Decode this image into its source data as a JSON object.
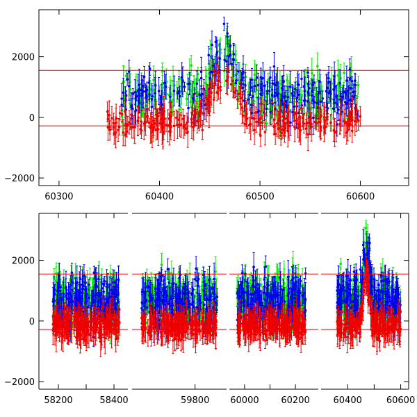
{
  "colors": {
    "green": "#00ee00",
    "blue": "#0000ee",
    "red": "#ee0000",
    "frame": "#000000"
  },
  "chart_data": [
    {
      "type": "scatter",
      "title": "",
      "xlabel": "",
      "ylabel": "",
      "xlim": [
        60280,
        60648
      ],
      "ylim": [
        -2250,
        3550
      ],
      "xticks": [
        60300,
        60400,
        60500,
        60600
      ],
      "xtick_labels": [
        "60300",
        "60400",
        "60500",
        "60600"
      ],
      "yticks": [
        -2000,
        0,
        2000
      ],
      "ytick_labels": [
        "−2000",
        "0",
        "2000"
      ],
      "hlines": [
        1550,
        -280
      ],
      "data_range": [
        60348,
        60600
      ],
      "peak_center": 60465,
      "series": [
        {
          "color": "green",
          "values_range": [
            -2000,
            3500
          ],
          "start": 60362,
          "end": 60598
        },
        {
          "color": "blue",
          "values_range": [
            -2000,
            3500
          ],
          "start": 60362,
          "end": 60600
        },
        {
          "color": "red",
          "values_range": [
            -1900,
            2600
          ],
          "start": 60348,
          "end": 60600
        }
      ],
      "error_bar_size": 350,
      "grid": false
    },
    {
      "type": "scatter",
      "title": "",
      "xlabel": "",
      "ylabel": "",
      "ylim": [
        -2250,
        3550
      ],
      "yticks": [
        -2000,
        0,
        2000
      ],
      "ytick_labels": [
        "−2000",
        "0",
        "2000"
      ],
      "hlines": [
        1550,
        -280
      ],
      "broken_axis": true,
      "segments": [
        {
          "xlim": [
            58130,
            58450
          ],
          "xticks": [
            58200,
            58300,
            58400
          ],
          "xtick_labels": [
            "58200",
            "",
            "58400"
          ],
          "data_range": [
            58180,
            58420
          ]
        },
        {
          "xlim": [
            59600,
            59900
          ],
          "xticks": [
            59800
          ],
          "xtick_labels": [
            "59800"
          ],
          "data_range": [
            59630,
            59870
          ]
        },
        {
          "xlim": [
            59940,
            60290
          ],
          "xticks": [
            60000,
            60100,
            60200
          ],
          "xtick_labels": [
            "60000",
            "",
            "60200"
          ],
          "data_range": [
            59970,
            60240
          ]
        },
        {
          "xlim": [
            60300,
            60630
          ],
          "xticks": [
            60400,
            60500,
            60600
          ],
          "xtick_labels": [
            "60400",
            "",
            "60600"
          ],
          "data_range": [
            60360,
            60600
          ]
        }
      ],
      "series": [
        {
          "color": "green",
          "values_range": [
            -2000,
            3500
          ]
        },
        {
          "color": "blue",
          "values_range": [
            -2000,
            3500
          ]
        },
        {
          "color": "red",
          "values_range": [
            -1800,
            2500
          ]
        }
      ],
      "error_bar_size": 350,
      "grid": false
    }
  ]
}
